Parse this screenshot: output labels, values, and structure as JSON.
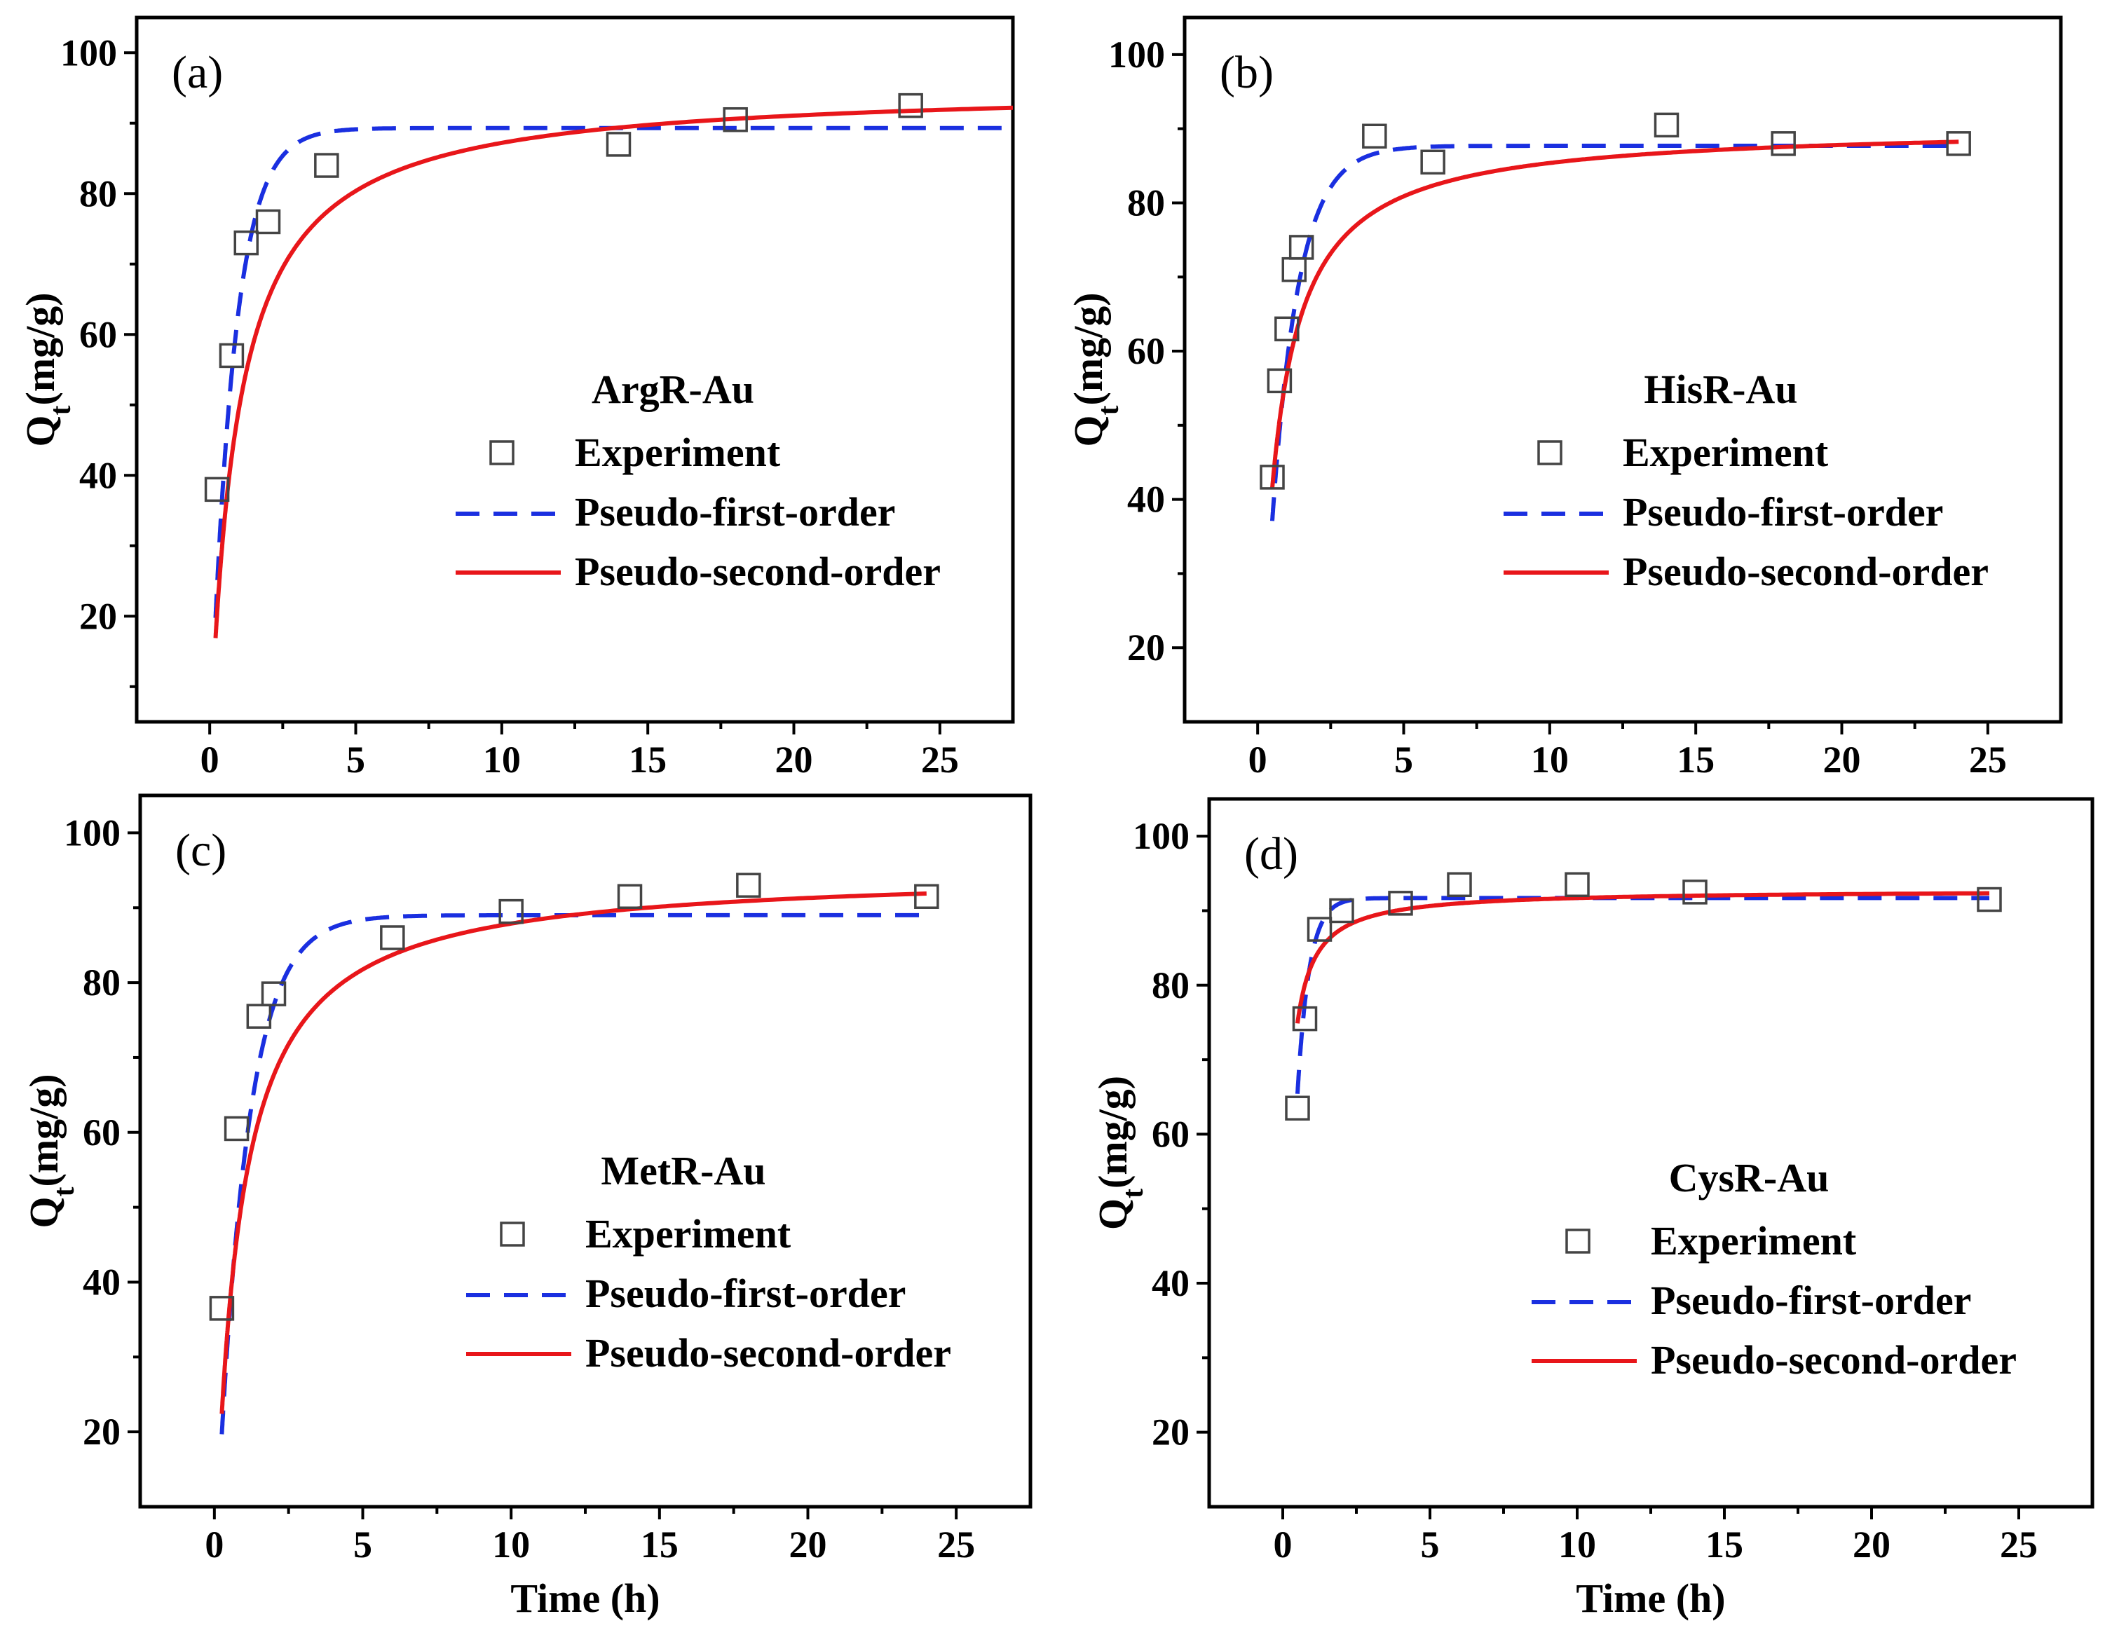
{
  "figure": {
    "xlabel": "Time (h)",
    "ylabel_main": "Q",
    "ylabel_sub": "t",
    "ylabel_unit": "(mg/g)"
  },
  "legend_labels": {
    "experiment": "Experiment",
    "pfo": "Pseudo-first-order",
    "pso": "Pseudo-second-order"
  },
  "colors": {
    "pfo": "#1a2fe0",
    "pso": "#e8161a",
    "marker": "#444444"
  },
  "chart_data": [
    {
      "type": "scatter",
      "panel": "(a)",
      "title": "ArgR-Au",
      "xlabel": "",
      "ylabel": "Qt(mg/g)",
      "xlim": [
        -2.5,
        27.5
      ],
      "ylim": [
        5,
        105
      ],
      "xticks": [
        0,
        5,
        10,
        15,
        20,
        25
      ],
      "yticks": [
        20,
        40,
        60,
        80,
        100
      ],
      "experiment": [
        [
          0.25,
          38
        ],
        [
          0.75,
          57
        ],
        [
          1.25,
          73
        ],
        [
          2,
          76
        ],
        [
          4,
          84
        ],
        [
          14,
          87
        ],
        [
          18,
          90.5
        ],
        [
          24,
          92.5
        ]
      ],
      "pfo": {
        "qe": 89.3,
        "k1": 1.25,
        "t_start": 0.2
      },
      "pso": {
        "qe": 95.3,
        "k2": 0.0113,
        "t_start": 0.2
      }
    },
    {
      "type": "scatter",
      "panel": "(b)",
      "title": "HisR-Au",
      "xlabel": "",
      "ylabel": "Qt(mg/g)",
      "xlim": [
        -2.5,
        27.5
      ],
      "ylim": [
        10,
        105
      ],
      "xticks": [
        0,
        5,
        10,
        15,
        20,
        25
      ],
      "yticks": [
        20,
        40,
        60,
        80,
        100
      ],
      "experiment": [
        [
          0.5,
          43
        ],
        [
          0.75,
          56
        ],
        [
          1,
          63
        ],
        [
          1.25,
          71
        ],
        [
          1.5,
          74
        ],
        [
          4,
          89
        ],
        [
          6,
          85.5
        ],
        [
          14,
          90.5
        ],
        [
          18,
          88
        ],
        [
          24,
          88
        ]
      ],
      "pfo": {
        "qe": 87.7,
        "k1": 1.1,
        "t_start": 0.5
      },
      "pso": {
        "qe": 90.4,
        "k2": 0.0188,
        "t_start": 0.5
      }
    },
    {
      "type": "scatter",
      "panel": "(c)",
      "title": "MetR-Au",
      "xlabel": "Time (h)",
      "ylabel": "Qt(mg/g)",
      "xlim": [
        -2.5,
        27.5
      ],
      "ylim": [
        10,
        105
      ],
      "xticks": [
        0,
        5,
        10,
        15,
        20,
        25
      ],
      "yticks": [
        20,
        40,
        60,
        80,
        100
      ],
      "experiment": [
        [
          0.25,
          36.5
        ],
        [
          0.75,
          60.5
        ],
        [
          1.5,
          75.5
        ],
        [
          2,
          78.5
        ],
        [
          6,
          86
        ],
        [
          10,
          89.5
        ],
        [
          14,
          91.5
        ],
        [
          18,
          93
        ],
        [
          24,
          91.5
        ]
      ],
      "pfo": {
        "qe": 89,
        "k1": 1.0,
        "t_start": 0.25
      },
      "pso": {
        "qe": 95,
        "k2": 0.013,
        "t_start": 0.25
      }
    },
    {
      "type": "scatter",
      "panel": "(d)",
      "title": "CysR-Au",
      "xlabel": "Time (h)",
      "ylabel": "Qt(mg/g)",
      "xlim": [
        -2.5,
        27.5
      ],
      "ylim": [
        10,
        105
      ],
      "xticks": [
        0,
        5,
        10,
        15,
        20,
        25
      ],
      "yticks": [
        20,
        40,
        60,
        80,
        100
      ],
      "experiment": [
        [
          0.5,
          63.5
        ],
        [
          0.75,
          75.5
        ],
        [
          1.25,
          87.5
        ],
        [
          2,
          90
        ],
        [
          4,
          91
        ],
        [
          6,
          93.5
        ],
        [
          10,
          93.5
        ],
        [
          14,
          92.5
        ],
        [
          24,
          91.5
        ]
      ],
      "pfo": {
        "qe": 91.7,
        "k1": 2.5,
        "t_start": 0.5
      },
      "pso": {
        "qe": 92.8,
        "k2": 0.09,
        "t_start": 0.5
      }
    }
  ]
}
